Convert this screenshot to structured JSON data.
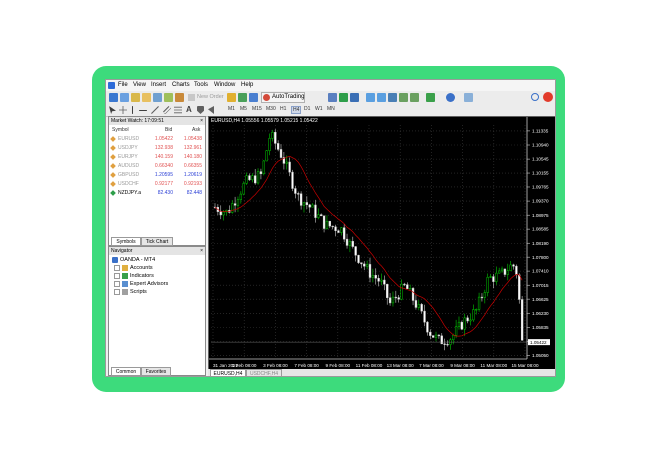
{
  "menu": [
    "File",
    "View",
    "Insert",
    "Charts",
    "Tools",
    "Window",
    "Help"
  ],
  "toolbar": {
    "new_order": "New Order",
    "autotrading": "AutoTrading"
  },
  "timeframes": [
    "M1",
    "M5",
    "M15",
    "M30",
    "H1",
    "H4",
    "D1",
    "W1",
    "MN"
  ],
  "market_watch": {
    "title": "Market Watch: 17:09:51",
    "headers": [
      "Symbol",
      "Bid",
      "Ask"
    ],
    "rows": [
      {
        "symbol": "EURUSD",
        "bid": "1.05422",
        "ask": "1.05438",
        "color": "#e05050",
        "dim": true
      },
      {
        "symbol": "USDJPY",
        "bid": "132.938",
        "ask": "132.961",
        "color": "#e05050",
        "dim": true
      },
      {
        "symbol": "EURJPY",
        "bid": "140.159",
        "ask": "140.180",
        "color": "#e05050",
        "dim": true
      },
      {
        "symbol": "AUDUSD",
        "bid": "0.66340",
        "ask": "0.66355",
        "color": "#e05050",
        "dim": true
      },
      {
        "symbol": "GBPUSD",
        "bid": "1.20595",
        "ask": "1.20619",
        "color": "#2a3fd6",
        "dim": true
      },
      {
        "symbol": "USDCHF",
        "bid": "0.92177",
        "ask": "0.92193",
        "color": "#e05050",
        "dim": true
      },
      {
        "symbol": "NZDJPY.a",
        "bid": "82.430",
        "ask": "82.448",
        "color": "#2a3fd6",
        "dim": false
      }
    ],
    "tabs": [
      "Symbols",
      "Tick Chart"
    ]
  },
  "navigator": {
    "title": "Navigator",
    "root": "OANDA - MT4",
    "items": [
      "Accounts",
      "Indicators",
      "Expert Advisors",
      "Scripts"
    ],
    "tabs": [
      "Common",
      "Favorites"
    ]
  },
  "chart": {
    "header": "EURUSD,H4  1.05556 1.05579 1.05215 1.05422",
    "price_ticks": [
      "1.11335",
      "1.10940",
      "1.10545",
      "1.10155",
      "1.09765",
      "1.09370",
      "1.08975",
      "1.08585",
      "1.08190",
      "1.07800",
      "1.07410",
      "1.07015",
      "1.06625",
      "1.06230",
      "1.05835",
      "1.05440",
      "1.05050"
    ],
    "current_price": "1.05422",
    "time_ticks": [
      "31 Jan 2022",
      "1 Feb 08:00",
      "3 Feb 08:00",
      "7 Feb 08:00",
      "9 Feb 08:00",
      "11 Feb 08:00",
      "13 Mar 08:00",
      "7 Mar 08:00",
      "9 Mar 08:00",
      "11 Mar 08:00",
      "15 Mar 08:00"
    ],
    "tabs": [
      "EURUSD,H4",
      "USDCHF,H4"
    ]
  },
  "colors": {
    "frame": "#3ddb7c",
    "bull": "#00c800",
    "bear": "#c8c8c8",
    "ma": "#c80000",
    "chart_bg": "#000000"
  }
}
